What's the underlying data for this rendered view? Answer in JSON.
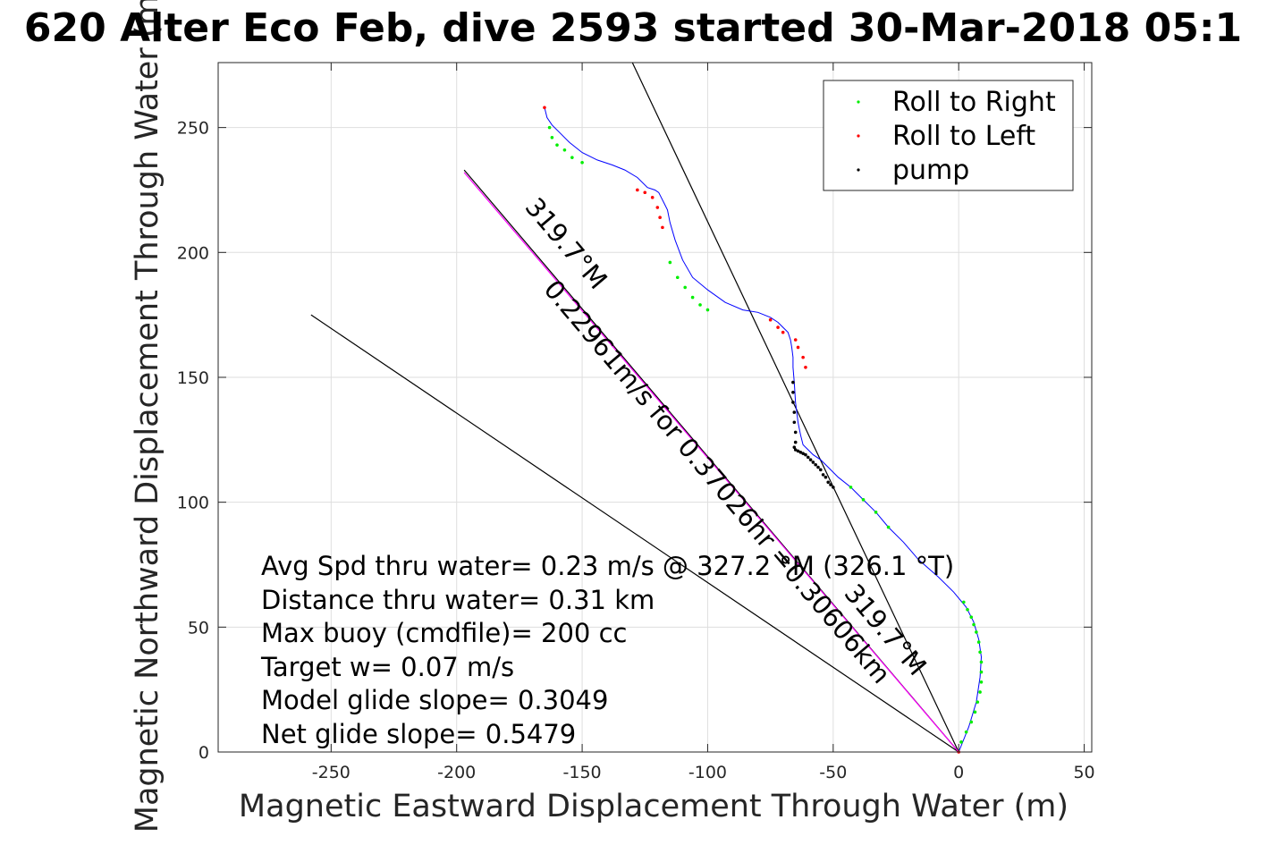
{
  "chart_data": {
    "type": "scatter",
    "title": "620 Alter Eco Feb, dive 2593 started 30-Mar-2018 05:1",
    "xlabel": "Magnetic Eastward Displacement Through Water (m)",
    "ylabel": "Magnetic Northward Displacement Through Water (m)",
    "xlim": [
      -295,
      53
    ],
    "ylim": [
      0,
      276
    ],
    "xticks": [
      -250,
      -200,
      -150,
      -100,
      -50,
      0,
      50
    ],
    "yticks": [
      0,
      50,
      100,
      150,
      200,
      250
    ],
    "xtick_labels": [
      "-250",
      "-200",
      "-150",
      "-100",
      "-50",
      "0",
      "50"
    ],
    "ytick_labels": [
      "0",
      "50",
      "100",
      "150",
      "200",
      "250"
    ],
    "grid": true,
    "legend_position": "top-right",
    "legend": [
      {
        "label": "Roll to Right",
        "color": "#00ee00"
      },
      {
        "label": "Roll to Left",
        "color": "#ff0000"
      },
      {
        "label": "pump",
        "color": "#000000"
      }
    ],
    "track": {
      "color": "#0000ff",
      "x": [
        0,
        4,
        7,
        8.5,
        9,
        8,
        6,
        3,
        -2,
        -8,
        -16,
        -22,
        -28,
        -33,
        -38,
        -43,
        -48,
        -52,
        -55,
        -58,
        -60,
        -62,
        -63,
        -64,
        -65,
        -65.5,
        -66,
        -66,
        -66.5,
        -67,
        -68,
        -70,
        -72,
        -75,
        -80,
        -86,
        -93,
        -100,
        -106,
        -110,
        -113,
        -115,
        -116,
        -117.5,
        -118.5,
        -119.5,
        -121,
        -124,
        -128,
        -133,
        -138,
        -144,
        -150,
        -155,
        -159,
        -162,
        -164,
        -164.5,
        -165
      ],
      "y": [
        0,
        10,
        20,
        30,
        38,
        45,
        52,
        58,
        64,
        70,
        77,
        84,
        90,
        96,
        101,
        106,
        110,
        114,
        117,
        119,
        121,
        123,
        127,
        132,
        140,
        148,
        154,
        158,
        162,
        165,
        168,
        170,
        172,
        174,
        176,
        177,
        180,
        185,
        190,
        197,
        205,
        212,
        217,
        220,
        222,
        224,
        225,
        226,
        230,
        233,
        235,
        237,
        240,
        244,
        248,
        251,
        254,
        256,
        258
      ]
    },
    "roll_right_points": {
      "color": "#00ee00",
      "x": [
        1,
        3,
        5,
        6.5,
        7.5,
        8.5,
        9,
        9,
        9,
        8.5,
        8,
        7,
        6,
        5,
        3.5,
        2,
        -28,
        -33,
        -38,
        -43,
        -100,
        -103,
        -106,
        -109,
        -112,
        -115,
        -150,
        -154,
        -157,
        -160,
        -162,
        -163
      ],
      "y": [
        4,
        8,
        12,
        16,
        20,
        24,
        28,
        32,
        36,
        40,
        44,
        48,
        51,
        54,
        57,
        60,
        90,
        96,
        101,
        106,
        177,
        179,
        182,
        186,
        190,
        196,
        236,
        238,
        241,
        243,
        246,
        250
      ]
    },
    "roll_left_points": {
      "color": "#ff0000",
      "x": [
        0,
        -61,
        -62,
        -64,
        -65,
        -70,
        -72,
        -75,
        -118,
        -119,
        -120,
        -122,
        -125,
        -128,
        -165
      ],
      "y": [
        0,
        154,
        158,
        162,
        165,
        168,
        170,
        173,
        210,
        214,
        218,
        222,
        224,
        225,
        258
      ]
    },
    "pump_points": {
      "color": "#000000",
      "x": [
        -65,
        -65,
        -65.5,
        -65.5,
        -66,
        -66,
        -66,
        -65.5,
        -65,
        -64,
        -63,
        -62,
        -61,
        -60,
        -59,
        -58,
        -57,
        -56,
        -55,
        -54,
        -53,
        -52,
        -51,
        -50
      ],
      "y": [
        124,
        128,
        132,
        136,
        140,
        144,
        148,
        122,
        121,
        120.5,
        120,
        119.5,
        119,
        118,
        117,
        116,
        115,
        114,
        113,
        111,
        110,
        108,
        107,
        106
      ]
    },
    "reference_lines": [
      {
        "color": "#000000",
        "x": [
          0,
          -258
        ],
        "y": [
          0,
          175
        ]
      },
      {
        "color": "#000000",
        "x": [
          0,
          -130
        ],
        "y": [
          0,
          276
        ]
      },
      {
        "color": "#000000",
        "x": [
          0,
          -197
        ],
        "y": [
          0,
          233
        ]
      },
      {
        "color": "#ff00ff",
        "x": [
          0,
          -197
        ],
        "y": [
          0,
          232
        ]
      }
    ],
    "rotated_labels": [
      {
        "text": "319.7°M",
        "angle": 229.7
      },
      {
        "text": "0.22961m/s for 0.37026hr =0.30606km",
        "angle": 229.7
      },
      {
        "text": "319.7°M",
        "angle": 229.7
      }
    ],
    "stats": [
      "Avg Spd thru water=  0.23 m/s @ 327.2 °M (326.1 °T)",
      "Distance thru water=  0.31 km",
      "Max buoy (cmdfile)= 200 cc",
      "Target w= 0.07 m/s",
      "Model glide slope= 0.3049",
      "Net glide slope= 0.5479"
    ]
  }
}
